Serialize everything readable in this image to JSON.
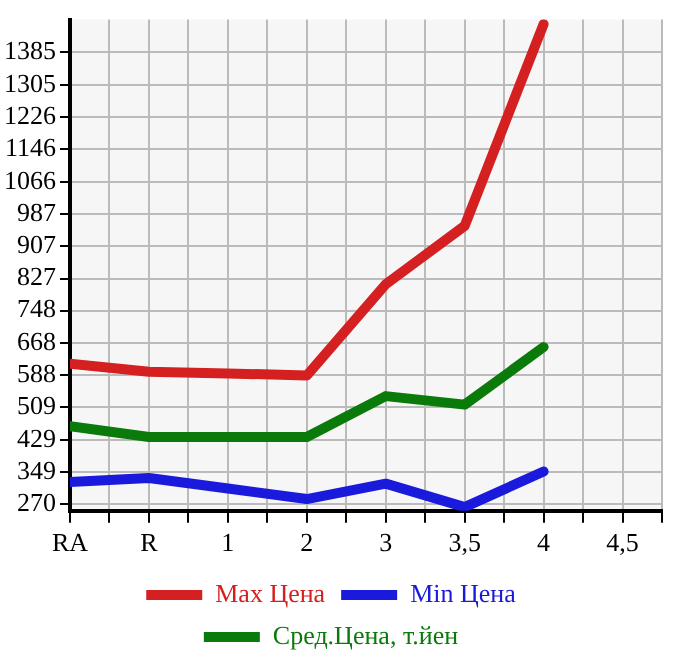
{
  "chart_data": {
    "type": "line",
    "categories": [
      "RA",
      "R",
      "1",
      "2",
      "3",
      "3,5",
      "4",
      "4,5"
    ],
    "series": [
      {
        "name": "Max Цена",
        "color": "#d42020",
        "values": [
          617,
          597,
          593,
          588,
          813,
          957,
          1455,
          null
        ]
      },
      {
        "name": "Min Цена",
        "color": "#1a1adc",
        "values": [
          325,
          335,
          309,
          283,
          321,
          263,
          351,
          null
        ]
      },
      {
        "name": "Сред.Цена, т.йен",
        "color": "#0a7a0a",
        "values": [
          463,
          436,
          436,
          436,
          537,
          516,
          658,
          null
        ]
      }
    ],
    "ylim": [
      254,
      1466
    ],
    "yticks": [
      270,
      349,
      429,
      509,
      588,
      668,
      748,
      827,
      907,
      987,
      1066,
      1146,
      1226,
      1305,
      1385
    ],
    "grid": true,
    "legend": "bottom",
    "marker": "none",
    "line_style": "solid"
  }
}
